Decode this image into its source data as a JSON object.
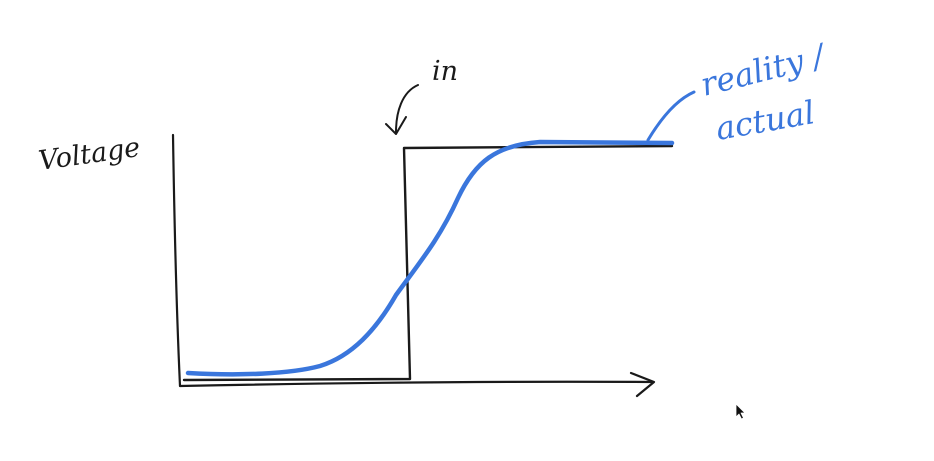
{
  "diagram": {
    "y_axis_label": "Voltage",
    "input_label": "in",
    "actual_label_line1": "reality /",
    "actual_label_line2": "actual",
    "colors": {
      "ink": "#1a1a1a",
      "signal_actual": "#3a76dc",
      "background": "#ffffff"
    },
    "icons": {
      "pointer": "mouse-cursor-icon"
    }
  }
}
